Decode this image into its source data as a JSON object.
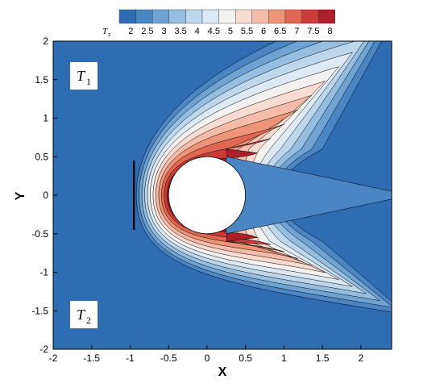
{
  "chart_data": {
    "type": "heatmap",
    "xlabel": "X",
    "ylabel": "Y",
    "xlim": [
      -2,
      2.4
    ],
    "ylim": [
      -2,
      2
    ],
    "x_ticks": [
      "-2",
      "-1.5",
      "-1",
      "-0.5",
      "0",
      "0.5",
      "1",
      "1.5",
      "2"
    ],
    "x_tick_values": [
      -2,
      -1.5,
      -1,
      -0.5,
      0,
      0.5,
      1,
      1.5,
      2
    ],
    "y_ticks": [
      "-2",
      "-1.5",
      "-1",
      "-0.5",
      "0",
      "0.5",
      "1",
      "1.5",
      "2"
    ],
    "y_tick_values": [
      -2,
      -1.5,
      -1,
      -0.5,
      0,
      0.5,
      1,
      1.5,
      2
    ],
    "legend": {
      "placement": "top-center",
      "title_main": "T",
      "title_sub": "s",
      "levels": [
        "2",
        "2.5",
        "3",
        "3.5",
        "4",
        "4.5",
        "5",
        "5.5",
        "6",
        "6.5",
        "7",
        "7.5",
        "8"
      ],
      "colors": [
        "#2f6db3",
        "#4a86c4",
        "#6ea3d3",
        "#95bee0",
        "#bdd7ec",
        "#dde9f4",
        "#f4f1f1",
        "#f8dcd2",
        "#f5bda9",
        "#ee9479",
        "#e06751",
        "#cb3c38",
        "#ae1f29"
      ]
    },
    "panel_labels": [
      {
        "main": "T",
        "sub": "1"
      },
      {
        "main": "T",
        "sub": "2"
      }
    ],
    "body": {
      "shape": "circle",
      "center": [
        0,
        0
      ],
      "radius": 0.5
    },
    "peak_value": 8,
    "freestream_value": 2
  }
}
